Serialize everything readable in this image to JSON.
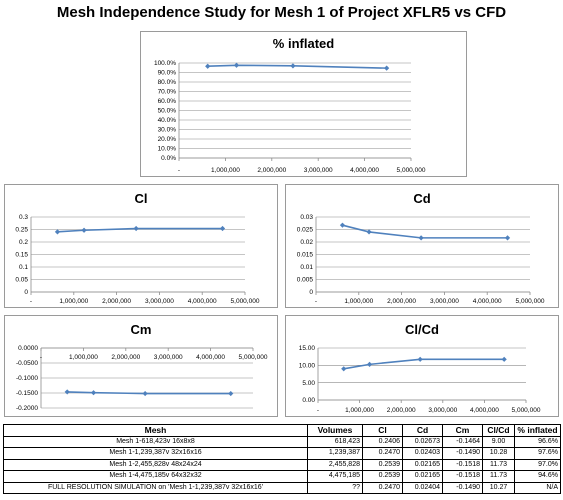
{
  "page_title": "Mesh Independence Study for Mesh 1 of Project XFLR5 vs CFD",
  "chart_data": [
    {
      "id": "inflated",
      "type": "line",
      "title": "% inflated",
      "x": [
        618423,
        1239387,
        2455828,
        4475185
      ],
      "values": [
        96.6,
        97.6,
        97.0,
        94.6
      ],
      "yticks": [
        "0.0%",
        "10.0%",
        "20.0%",
        "30.0%",
        "40.0%",
        "50.0%",
        "60.0%",
        "70.0%",
        "80.0%",
        "90.0%",
        "100.0%"
      ],
      "xticks": [
        "-",
        "1,000,000",
        "2,000,000",
        "3,000,000",
        "4,000,000",
        "5,000,000"
      ],
      "ylim": [
        0,
        100
      ],
      "xlim": [
        0,
        5000000
      ],
      "grid": true,
      "line_color": "#4f81bd"
    },
    {
      "id": "cl",
      "type": "line",
      "title": "Cl",
      "x": [
        618423,
        1239387,
        2455828,
        4475185
      ],
      "values": [
        0.2406,
        0.247,
        0.2539,
        0.2539
      ],
      "yticks": [
        "0",
        "0.05",
        "0.1",
        "0.15",
        "0.2",
        "0.25",
        "0.3"
      ],
      "xticks": [
        "-",
        "1,000,000",
        "2,000,000",
        "3,000,000",
        "4,000,000",
        "5,000,000"
      ],
      "ylim": [
        0,
        0.3
      ],
      "xlim": [
        0,
        5000000
      ],
      "grid": true,
      "line_color": "#4f81bd"
    },
    {
      "id": "cd",
      "type": "line",
      "title": "Cd",
      "x": [
        618423,
        1239387,
        2455828,
        4475185
      ],
      "values": [
        0.02673,
        0.02403,
        0.02165,
        0.02165
      ],
      "yticks": [
        "0",
        "0.005",
        "0.01",
        "0.015",
        "0.02",
        "0.025",
        "0.03"
      ],
      "xticks": [
        "-",
        "1,000,000",
        "2,000,000",
        "3,000,000",
        "4,000,000",
        "5,000,000"
      ],
      "ylim": [
        0,
        0.03
      ],
      "xlim": [
        0,
        5000000
      ],
      "grid": true,
      "line_color": "#4f81bd"
    },
    {
      "id": "cm",
      "type": "line",
      "title": "Cm",
      "x": [
        618423,
        1239387,
        2455828,
        4475185
      ],
      "values": [
        -0.1464,
        -0.149,
        -0.1518,
        -0.1518
      ],
      "yticks": [
        "-0.2000",
        "-0.1500",
        "-0.1000",
        "-0.0500",
        "0.0000"
      ],
      "xticks": [
        "-",
        "1,000,000",
        "2,000,000",
        "3,000,000",
        "4,000,000",
        "5,000,000"
      ],
      "ylim": [
        -0.2,
        0
      ],
      "xlim": [
        0,
        5000000
      ],
      "grid": true,
      "line_color": "#4f81bd"
    },
    {
      "id": "clcd",
      "type": "line",
      "title": "Cl/Cd",
      "x": [
        618423,
        1239387,
        2455828,
        4475185
      ],
      "values": [
        9.0,
        10.28,
        11.73,
        11.73
      ],
      "yticks": [
        "0.00",
        "5.00",
        "10.00",
        "15.00"
      ],
      "xticks": [
        "-",
        "1,000,000",
        "2,000,000",
        "3,000,000",
        "4,000,000",
        "5,000,000"
      ],
      "ylim": [
        0,
        15
      ],
      "xlim": [
        0,
        5000000
      ],
      "grid": true,
      "line_color": "#4f81bd"
    }
  ],
  "table": {
    "headers": [
      "Mesh",
      "Volumes",
      "Cl",
      "Cd",
      "Cm",
      "Cl/Cd",
      "% inflated"
    ],
    "rows": [
      [
        "Mesh 1-618,423v 16x8x8",
        "618,423",
        "0.2406",
        "0.02673",
        "-0.1464",
        "9.00",
        "96.6%"
      ],
      [
        "Mesh 1-1,239,387v 32x16x16",
        "1,239,387",
        "0.2470",
        "0.02403",
        "-0.1490",
        "10.28",
        "97.6%"
      ],
      [
        "Mesh 1-2,455,828v 48x24x24",
        "2,455,828",
        "0.2539",
        "0.02165",
        "-0.1518",
        "11.73",
        "97.0%"
      ],
      [
        "Mesh 1-4,475,185v 64x32x32",
        "4,475,185",
        "0.2539",
        "0.02165",
        "-0.1518",
        "11.73",
        "94.6%"
      ],
      [
        "FULL RESOLUTION SIMULATION on 'Mesh 1-1,239,387v 32x16x16'",
        "??",
        "0.2470",
        "0.02404",
        "-0.1490",
        "10.27",
        "N/A"
      ]
    ]
  }
}
